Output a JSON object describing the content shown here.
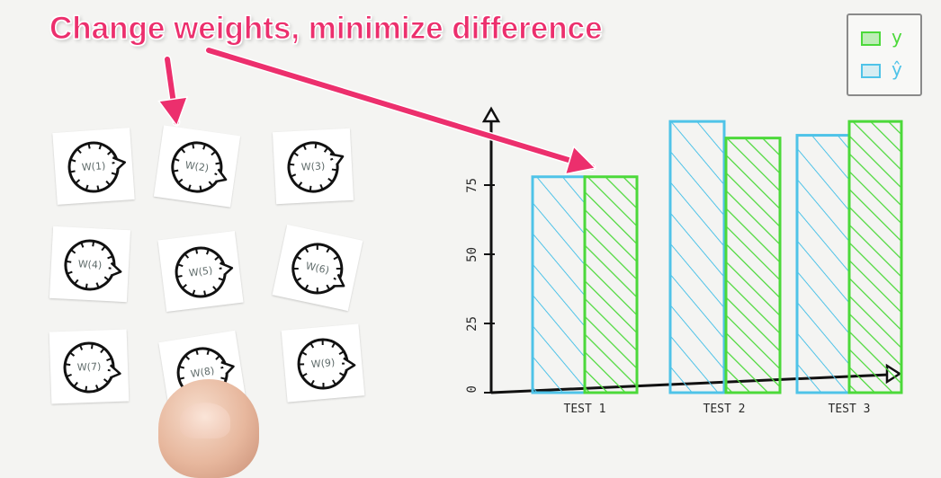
{
  "headline": "Change weights, minimize difference",
  "weights": [
    {
      "label": "W(1)",
      "angle": -8
    },
    {
      "label": "W(2)",
      "angle": 12
    },
    {
      "label": "W(3)",
      "angle": -20
    },
    {
      "label": "W(4)",
      "angle": 6
    },
    {
      "label": "W(5)",
      "angle": -4
    },
    {
      "label": "W(6)",
      "angle": 18
    },
    {
      "label": "W(7)",
      "angle": 10
    },
    {
      "label": "W(8)",
      "angle": -6
    },
    {
      "label": "W(9)",
      "angle": 4
    }
  ],
  "legend": {
    "y_label": "y",
    "yhat_label": "ŷ",
    "y_color": "#4cd93a",
    "yhat_color": "#4fc3e8"
  },
  "chart_data": {
    "type": "bar",
    "categories": [
      "TEST 1",
      "TEST 2",
      "TEST 3"
    ],
    "series": [
      {
        "name": "ŷ",
        "values": [
          78,
          98,
          93
        ],
        "color": "#4fc3e8"
      },
      {
        "name": "y",
        "values": [
          78,
          92,
          98
        ],
        "color": "#4cd93a"
      }
    ],
    "yticks": [
      "0",
      "25",
      "50",
      "75"
    ],
    "ytick_values": [
      0,
      25,
      50,
      75
    ],
    "ylim": [
      0,
      100
    ]
  }
}
